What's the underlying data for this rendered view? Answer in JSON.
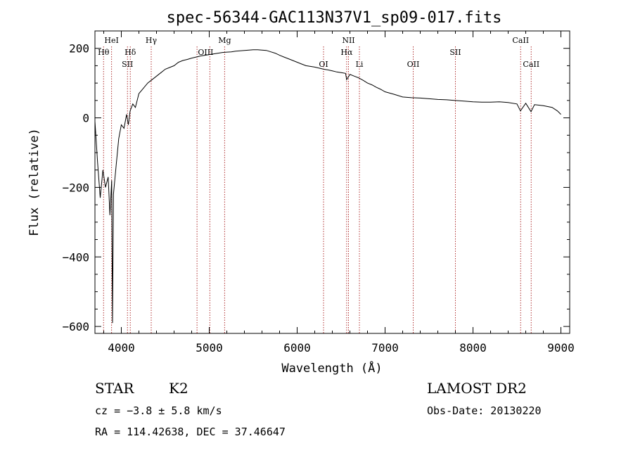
{
  "chart_data": {
    "type": "line",
    "title": "spec-56344-GAC113N37V1_sp09-017.fits",
    "xlabel": "Wavelength (Å)",
    "ylabel": "Flux (relative)",
    "xlim": [
      3700,
      9100
    ],
    "ylim": [
      -620,
      250
    ],
    "xticks": [
      "4000",
      "5000",
      "6000",
      "7000",
      "8000",
      "9000"
    ],
    "yticks": [
      "200",
      "0",
      "−200",
      "−400",
      "−600"
    ],
    "xtick_values": [
      4000,
      5000,
      6000,
      7000,
      8000,
      9000
    ],
    "ytick_values": [
      200,
      0,
      -200,
      -400,
      -600
    ],
    "grid": false,
    "series": [
      {
        "x": [
          3700,
          3730,
          3760,
          3790,
          3820,
          3850,
          3870,
          3890,
          3900,
          3910,
          3940,
          3970,
          4000,
          4030,
          4060,
          4080,
          4100,
          4130,
          4160,
          4200,
          4250,
          4300,
          4350,
          4400,
          4450,
          4500,
          4550,
          4600,
          4650,
          4700,
          4750,
          4800,
          4850,
          4900,
          4950,
          5000,
          5050,
          5100,
          5150,
          5200,
          5250,
          5300,
          5350,
          5400,
          5450,
          5500,
          5550,
          5600,
          5650,
          5700,
          5750,
          5800,
          5850,
          5900,
          5950,
          6000,
          6050,
          6100,
          6150,
          6200,
          6250,
          6300,
          6350,
          6400,
          6450,
          6500,
          6550,
          6563,
          6600,
          6650,
          6700,
          6750,
          6800,
          6850,
          6900,
          6950,
          7000,
          7100,
          7200,
          7300,
          7400,
          7500,
          7600,
          7700,
          7800,
          7900,
          8000,
          8100,
          8200,
          8300,
          8400,
          8500,
          8540,
          8600,
          8660,
          8700,
          8800,
          8900,
          8960,
          9000
        ],
        "y": [
          -10,
          -130,
          -230,
          -150,
          -200,
          -170,
          -280,
          -180,
          -590,
          -220,
          -140,
          -60,
          -20,
          -30,
          10,
          -20,
          20,
          40,
          30,
          70,
          85,
          100,
          110,
          120,
          130,
          140,
          145,
          150,
          160,
          165,
          168,
          172,
          175,
          178,
          180,
          182,
          184,
          186,
          188,
          189,
          190,
          192,
          193,
          194,
          195,
          196,
          196,
          195,
          194,
          190,
          186,
          180,
          175,
          170,
          165,
          160,
          155,
          150,
          148,
          146,
          143,
          140,
          138,
          135,
          132,
          130,
          128,
          110,
          125,
          120,
          115,
          108,
          100,
          95,
          88,
          82,
          75,
          68,
          60,
          58,
          57,
          55,
          53,
          52,
          50,
          48,
          46,
          45,
          45,
          46,
          44,
          40,
          20,
          42,
          18,
          38,
          35,
          30,
          20,
          10
        ]
      }
    ],
    "line_markers": [
      {
        "label": "Hθ",
        "wavelength": 3798,
        "row": 2
      },
      {
        "label": "HeI",
        "wavelength": 3889,
        "row": 1
      },
      {
        "label": "Hδ",
        "wavelength": 4102,
        "row": 2
      },
      {
        "label": "SII",
        "wavelength": 4070,
        "row": 3
      },
      {
        "label": "Hγ",
        "wavelength": 4340,
        "row": 1
      },
      {
        "label": "OIII",
        "wavelength": 4959,
        "row": 2
      },
      {
        "label": "Mg",
        "wavelength": 5175,
        "row": 1
      },
      {
        "label": "OI",
        "wavelength": 6300,
        "row": 3
      },
      {
        "label": "NII",
        "wavelength": 6584,
        "row": 1
      },
      {
        "label": "Hα",
        "wavelength": 6563,
        "row": 2
      },
      {
        "label": "Li",
        "wavelength": 6708,
        "row": 3
      },
      {
        "label": "OII",
        "wavelength": 7320,
        "row": 3
      },
      {
        "label": "SII",
        "wavelength": 7800,
        "row": 2
      },
      {
        "label": "CaII",
        "wavelength": 8542,
        "row": 1
      },
      {
        "label": "CaII",
        "wavelength": 8662,
        "row": 3
      }
    ],
    "marker_lines": [
      3798,
      3889,
      4070,
      4102,
      4340,
      4861,
      5007,
      5175,
      6300,
      6563,
      6584,
      6708,
      7320,
      7800,
      8542,
      8662
    ]
  },
  "info": {
    "object_type": "STAR",
    "subclass": "K2",
    "survey": "LAMOST DR2",
    "cz": "cz = −3.8 ± 5.8 km/s",
    "obs_date": "Obs-Date: 20130220",
    "coords": "RA = 114.42638, DEC =  37.46647"
  },
  "colors": {
    "spectrum": "#000000",
    "marker_line": "#b03030",
    "axes": "#000000"
  }
}
